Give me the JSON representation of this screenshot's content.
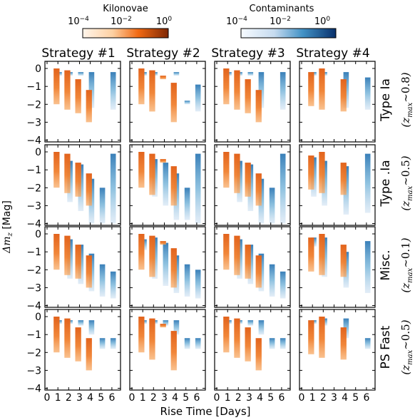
{
  "chart_data": {
    "type": "heatmap",
    "colorbars": [
      {
        "name": "Kilonovae",
        "tick_labels": [
          "10^-4",
          "10^-2",
          "10^0"
        ],
        "scale": "log",
        "range": [
          0.0001,
          1
        ],
        "color_low": "#fff5eb",
        "color_high": "#7f2704"
      },
      {
        "name": "Contaminants",
        "tick_labels": [
          "10^-4",
          "10^-2",
          "10^0"
        ],
        "scale": "log",
        "range": [
          0.0001,
          1
        ],
        "color_low": "#f7fbff",
        "color_high": "#08306b"
      }
    ],
    "columns": [
      "Strategy #1",
      "Strategy #2",
      "Strategy #3",
      "Strategy #4"
    ],
    "rows": [
      {
        "label": "Type Ia",
        "zmax": "0.8"
      },
      {
        "label": "Type .Ia",
        "zmax": "0.5"
      },
      {
        "label": "Misc.",
        "zmax": "0.1"
      },
      {
        "label": "PS Fast",
        "zmax": "0.5"
      }
    ],
    "xlabel": "Rise Time [Days]",
    "ylabel": "Δm_z [Mag]",
    "xticks": [
      "0",
      "1",
      "2",
      "3",
      "4",
      "5",
      "6"
    ],
    "yticks": [
      "0",
      "-1",
      "-2",
      "-3",
      "-4"
    ],
    "xlim": [
      -0.2,
      6.8
    ],
    "ylim": [
      -4.1,
      0.4
    ],
    "grid": false,
    "kilonova_color": "#ee7a2e",
    "contaminant_color": "#4a93c6",
    "kilonovae": {
      "Strategy #1": [
        [
          1,
          0,
          -2.0
        ],
        [
          2,
          -0.1,
          -2.3
        ],
        [
          3,
          -0.6,
          -2.5
        ],
        [
          4,
          -1.2,
          -3.0
        ]
      ],
      "Strategy #2": [
        [
          1,
          0,
          -2.0
        ],
        [
          2,
          -0.1,
          -2.4
        ],
        [
          3,
          -0.4,
          -0.6
        ],
        [
          4,
          -0.8,
          -3.0
        ]
      ],
      "Strategy #3": [
        [
          1,
          0,
          -2.0
        ],
        [
          2,
          -0.1,
          -2.3
        ],
        [
          3,
          -0.6,
          -2.5
        ],
        [
          4,
          -1.2,
          -3.0
        ]
      ],
      "Strategy #4": [
        [
          1,
          -0.2,
          -2.1
        ],
        [
          2,
          0,
          -2.3
        ],
        [
          4,
          -0.6,
          -2.4
        ]
      ]
    },
    "contaminants": {
      "Type Ia": {
        "Strategy #1": [
          [
            1,
            -0.2,
            -0.2
          ],
          [
            2,
            -0.2,
            -0.2
          ],
          [
            3,
            -0.2,
            -0.2
          ],
          [
            4,
            -0.2,
            -2.2
          ],
          [
            6,
            -0.2,
            -2.3
          ]
        ],
        "Strategy #2": [
          [
            1,
            -0.2,
            -0.2
          ],
          [
            2,
            -0.2,
            -0.2
          ],
          [
            4,
            -0.2,
            -0.2
          ],
          [
            5,
            -1.8,
            -2.0
          ],
          [
            6,
            -0.9,
            -2.4
          ]
        ],
        "Strategy #3": [
          [
            1,
            -0.2,
            -0.2
          ],
          [
            2,
            -0.2,
            -0.2
          ],
          [
            3,
            -0.2,
            -0.2
          ],
          [
            4,
            -0.2,
            -2.2
          ],
          [
            6,
            -0.2,
            -2.3
          ]
        ],
        "Strategy #4": [
          [
            1,
            -0.2,
            -0.2
          ],
          [
            2,
            -0.2,
            -0.2
          ],
          [
            4,
            -0.2,
            -2.2
          ],
          [
            6,
            -0.5,
            -2.3
          ]
        ]
      },
      "Type .Ia": {
        "Strategy #1": [
          [
            2,
            -0.5,
            -2.8
          ],
          [
            3,
            -0.7,
            -3.3
          ],
          [
            4,
            -1.5,
            -4.0
          ],
          [
            5,
            -2.0,
            -4.0
          ],
          [
            6,
            -0.1,
            -4.0
          ]
        ],
        "Strategy #2": [
          [
            2,
            -0.4,
            -2.5
          ],
          [
            3,
            -0.6,
            -3.0
          ],
          [
            4,
            -1.2,
            -3.8
          ],
          [
            5,
            -2.0,
            -3.8
          ],
          [
            6,
            -0.1,
            -4.0
          ]
        ],
        "Strategy #3": [
          [
            2,
            -0.5,
            -2.8
          ],
          [
            3,
            -0.7,
            -3.3
          ],
          [
            4,
            -1.5,
            -4.0
          ],
          [
            5,
            -2.0,
            -4.0
          ],
          [
            6,
            -0.1,
            -4.0
          ]
        ],
        "Strategy #4": [
          [
            1,
            -0.3,
            -2.5
          ],
          [
            2,
            -0.5,
            -3.0
          ],
          [
            4,
            -0.8,
            -3.5
          ],
          [
            6,
            -0.1,
            -3.4
          ]
        ]
      },
      "Misc.": {
        "Strategy #1": [
          [
            2,
            -0.3,
            -2.5
          ],
          [
            3,
            -0.6,
            -2.8
          ],
          [
            4,
            -1.1,
            -3.2
          ],
          [
            5,
            -1.7,
            -3.5
          ],
          [
            6,
            -2.1,
            -3.6
          ]
        ],
        "Strategy #2": [
          [
            1,
            -0.3,
            -0.9
          ],
          [
            2,
            -0.2,
            -2.5
          ],
          [
            3,
            -0.5,
            -2.9
          ],
          [
            4,
            -1.2,
            -3.3
          ],
          [
            5,
            -1.7,
            -3.5
          ],
          [
            6,
            -2.0,
            -3.6
          ]
        ],
        "Strategy #3": [
          [
            2,
            -0.3,
            -2.5
          ],
          [
            3,
            -0.6,
            -2.8
          ],
          [
            4,
            -1.1,
            -3.2
          ],
          [
            5,
            -1.7,
            -3.5
          ],
          [
            6,
            -2.1,
            -3.6
          ]
        ],
        "Strategy #4": [
          [
            1,
            -0.2,
            -0.7
          ],
          [
            2,
            -0.2,
            -2.4
          ],
          [
            4,
            -1.0,
            -3.0
          ],
          [
            6,
            -0.4,
            -3.3
          ]
        ]
      },
      "PS Fast": {
        "Strategy #1": [
          [
            1,
            -0.2,
            -0.3
          ],
          [
            2,
            -0.2,
            -0.4
          ],
          [
            3,
            -0.2,
            -0.5
          ],
          [
            4,
            -0.2,
            -1.0
          ],
          [
            5,
            -1.2,
            -1.8
          ],
          [
            6,
            -1.2,
            -1.8
          ]
        ],
        "Strategy #2": [
          [
            1,
            -0.2,
            -0.3
          ],
          [
            2,
            -0.2,
            -0.4
          ],
          [
            3,
            -0.2,
            -0.5
          ],
          [
            4,
            -0.2,
            -1.0
          ],
          [
            5,
            -1.2,
            -1.8
          ],
          [
            6,
            -1.2,
            -1.8
          ]
        ],
        "Strategy #3": [
          [
            1,
            -0.2,
            -0.3
          ],
          [
            2,
            -0.2,
            -0.4
          ],
          [
            3,
            -0.2,
            -0.5
          ],
          [
            4,
            -0.2,
            -1.0
          ],
          [
            5,
            -1.2,
            -1.8
          ],
          [
            6,
            -1.2,
            -1.8
          ]
        ],
        "Strategy #4": [
          [
            1,
            -0.2,
            -0.3
          ],
          [
            2,
            -0.1,
            -0.5
          ],
          [
            4,
            -0.1,
            -1.2
          ],
          [
            6,
            -1.2,
            -1.8
          ]
        ]
      }
    }
  }
}
